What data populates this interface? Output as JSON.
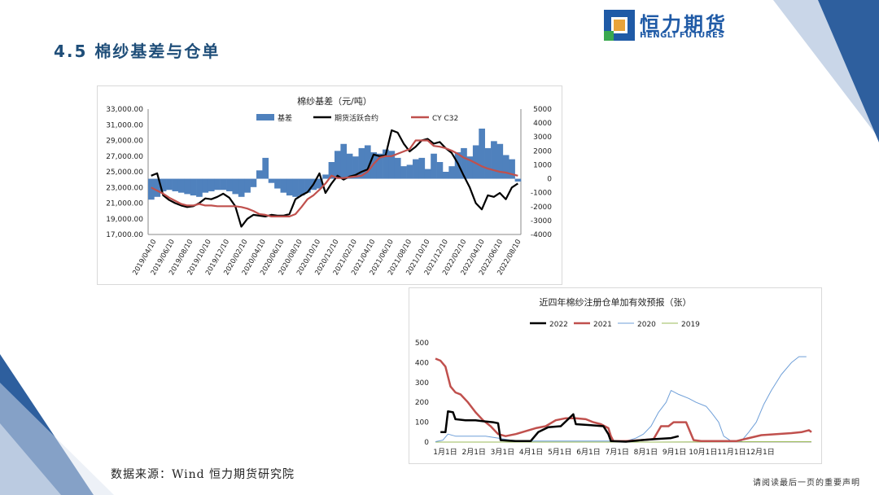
{
  "page": {
    "title": "4.5 棉纱基差与仓单",
    "source": "数据来源：Wind 恒力期货研究院",
    "disclaimer": "请阅读最后一页的重要声明"
  },
  "logo": {
    "cn": "恒力期货",
    "en": "HENGLI FUTURES",
    "colors": [
      "#1f5aa6",
      "#e8a33a",
      "#3aa84f"
    ]
  },
  "colors": {
    "accent": "#1f4e79",
    "deco_blue": "#2e5f9e",
    "deco_light": "#c9d6e8"
  },
  "chart_data": [
    {
      "type": "bar+line",
      "title": "棉纱基差（元/吨）",
      "x_ticks": [
        "2019/04/10",
        "2019/06/10",
        "2019/08/10",
        "2019/10/10",
        "2019/12/10",
        "2020/02/10",
        "2020/04/10",
        "2020/06/10",
        "2020/08/10",
        "2020/10/10",
        "2020/12/10",
        "2021/02/10",
        "2021/04/10",
        "2021/06/10",
        "2021/08/10",
        "2021/10/10",
        "2021/12/10",
        "2022/02/10",
        "2022/04/10",
        "2022/06/10",
        "2022/08/10"
      ],
      "left_axis": {
        "min": 17000,
        "max": 33000,
        "ticks": [
          "17,000.00",
          "19,000.00",
          "21,000.00",
          "23,000.00",
          "25,000.00",
          "27,000.00",
          "29,000.00",
          "31,000.00",
          "33,000.00"
        ]
      },
      "right_axis": {
        "min": -4000,
        "max": 5000,
        "ticks": [
          "-4000",
          "-3000",
          "-2000",
          "-1000",
          "0",
          "1000",
          "2000",
          "3000",
          "4000",
          "5000"
        ]
      },
      "series": [
        {
          "name": "基差",
          "axis": "right",
          "kind": "bar",
          "color": "#4f81bd",
          "values": [
            -1500,
            -1300,
            -900,
            -800,
            -900,
            -1000,
            -1100,
            -1200,
            -1300,
            -1000,
            -900,
            -800,
            -800,
            -900,
            -1100,
            -1300,
            -1000,
            -600,
            600,
            1500,
            -300,
            -700,
            -1000,
            -1200,
            -1300,
            -1200,
            -1000,
            -800,
            -700,
            300,
            1200,
            2000,
            2500,
            1800,
            1600,
            2200,
            2400,
            1900,
            1800,
            2100,
            2000,
            1500,
            900,
            1000,
            1400,
            1500,
            700,
            1800,
            1200,
            500,
            900,
            1900,
            2200,
            1600,
            2400,
            3600,
            2200,
            2700,
            2500,
            1700,
            1400,
            -200
          ]
        },
        {
          "name": "期货活跃合约",
          "axis": "left",
          "kind": "line",
          "color": "#000000",
          "values": [
            24500,
            24800,
            22000,
            21400,
            21000,
            20700,
            20500,
            20600,
            21000,
            21600,
            21500,
            21800,
            22200,
            21700,
            20600,
            18000,
            19000,
            19500,
            19400,
            19300,
            19500,
            19400,
            19400,
            19600,
            21500,
            22000,
            22400,
            23400,
            24800,
            22300,
            23500,
            24500,
            24000,
            24400,
            24600,
            25000,
            25300,
            27200,
            27000,
            27100,
            30300,
            30000,
            28600,
            27600,
            28200,
            29000,
            29200,
            28600,
            28800,
            28000,
            27400,
            26100,
            24500,
            23000,
            21000,
            20200,
            22000,
            21800,
            22300,
            21500,
            23000,
            23500
          ]
        },
        {
          "name": "CY C32",
          "axis": "left",
          "kind": "line",
          "color": "#c0504d",
          "values": [
            23000,
            22600,
            22200,
            21700,
            21300,
            20900,
            20700,
            20700,
            20900,
            20700,
            20700,
            20600,
            20600,
            20600,
            20600,
            20500,
            20300,
            20000,
            19600,
            19500,
            19300,
            19300,
            19300,
            19300,
            19600,
            20500,
            21500,
            22000,
            22700,
            23500,
            24500,
            24200,
            24200,
            24300,
            24400,
            24500,
            25000,
            26000,
            26800,
            27000,
            27000,
            27300,
            27600,
            27900,
            29000,
            29000,
            29000,
            28300,
            28200,
            28000,
            27700,
            27300,
            26800,
            26500,
            26100,
            25700,
            25400,
            25200,
            25000,
            24900,
            24700,
            24500
          ]
        }
      ]
    },
    {
      "type": "line",
      "title": "近四年棉纱注册仓单加有效预报（张）",
      "x_labels": [
        "1月1日",
        "2月1日",
        "3月1日",
        "4月1日",
        "5月1日",
        "6月1日",
        "7月1日",
        "8月1日",
        "9月1日",
        "10月1日",
        "11月1日",
        "12月1日"
      ],
      "ylim": [
        0,
        500
      ],
      "y_ticks": [
        "0",
        "100",
        "200",
        "300",
        "400",
        "500"
      ],
      "series": [
        {
          "name": "2022",
          "color": "#000000",
          "width": 2.5,
          "points": [
            [
              0.2,
              50
            ],
            [
              0.4,
              50
            ],
            [
              0.5,
              155
            ],
            [
              0.7,
              150
            ],
            [
              0.8,
              115
            ],
            [
              1.2,
              110
            ],
            [
              1.6,
              110
            ],
            [
              1.9,
              105
            ],
            [
              2.3,
              100
            ],
            [
              2.5,
              95
            ],
            [
              2.6,
              10
            ],
            [
              3.2,
              5
            ],
            [
              3.8,
              5
            ],
            [
              4.1,
              50
            ],
            [
              4.5,
              75
            ],
            [
              5.0,
              80
            ],
            [
              5.5,
              140
            ],
            [
              5.6,
              90
            ],
            [
              6.2,
              85
            ],
            [
              6.7,
              80
            ],
            [
              6.9,
              40
            ],
            [
              7.0,
              5
            ],
            [
              7.6,
              2
            ],
            [
              8.2,
              10
            ],
            [
              8.8,
              15
            ],
            [
              9.4,
              20
            ],
            [
              9.7,
              30
            ]
          ]
        },
        {
          "name": "2021",
          "color": "#c0504d",
          "width": 2.5,
          "points": [
            [
              0.0,
              420
            ],
            [
              0.2,
              410
            ],
            [
              0.4,
              380
            ],
            [
              0.6,
              280
            ],
            [
              0.8,
              250
            ],
            [
              1.0,
              240
            ],
            [
              1.3,
              200
            ],
            [
              1.6,
              150
            ],
            [
              1.9,
              110
            ],
            [
              2.2,
              80
            ],
            [
              2.5,
              40
            ],
            [
              2.8,
              30
            ],
            [
              3.2,
              40
            ],
            [
              3.6,
              55
            ],
            [
              4.0,
              70
            ],
            [
              4.4,
              80
            ],
            [
              4.8,
              110
            ],
            [
              5.2,
              120
            ],
            [
              5.6,
              120
            ],
            [
              6.0,
              115
            ],
            [
              6.3,
              100
            ],
            [
              6.6,
              90
            ],
            [
              6.9,
              70
            ],
            [
              7.0,
              30
            ],
            [
              7.1,
              5
            ],
            [
              7.6,
              5
            ],
            [
              8.2,
              10
            ],
            [
              8.7,
              15
            ],
            [
              9.0,
              80
            ],
            [
              9.3,
              80
            ],
            [
              9.5,
              100
            ],
            [
              10.0,
              100
            ],
            [
              10.3,
              10
            ],
            [
              10.6,
              5
            ],
            [
              11.2,
              5
            ],
            [
              12.0,
              5
            ],
            [
              12.5,
              20
            ],
            [
              13.0,
              35
            ],
            [
              13.6,
              40
            ],
            [
              14.2,
              45
            ],
            [
              14.6,
              50
            ],
            [
              14.9,
              60
            ],
            [
              15.0,
              50
            ]
          ]
        },
        {
          "name": "2020",
          "color": "#6f9fd8",
          "width": 1,
          "points": [
            [
              0.0,
              2
            ],
            [
              0.3,
              10
            ],
            [
              0.5,
              40
            ],
            [
              0.8,
              30
            ],
            [
              1.2,
              30
            ],
            [
              1.6,
              30
            ],
            [
              2.0,
              30
            ],
            [
              2.5,
              20
            ],
            [
              3.0,
              10
            ],
            [
              3.5,
              5
            ],
            [
              4.0,
              5
            ],
            [
              5.0,
              5
            ],
            [
              6.0,
              5
            ],
            [
              7.0,
              5
            ],
            [
              7.6,
              5
            ],
            [
              8.0,
              20
            ],
            [
              8.3,
              40
            ],
            [
              8.6,
              80
            ],
            [
              8.9,
              150
            ],
            [
              9.2,
              200
            ],
            [
              9.4,
              260
            ],
            [
              9.7,
              240
            ],
            [
              10.1,
              220
            ],
            [
              10.4,
              200
            ],
            [
              10.8,
              180
            ],
            [
              11.0,
              150
            ],
            [
              11.3,
              100
            ],
            [
              11.5,
              30
            ],
            [
              11.8,
              5
            ],
            [
              12.2,
              5
            ],
            [
              12.5,
              50
            ],
            [
              12.8,
              100
            ],
            [
              13.1,
              190
            ],
            [
              13.4,
              260
            ],
            [
              13.8,
              340
            ],
            [
              14.2,
              400
            ],
            [
              14.5,
              430
            ],
            [
              14.8,
              430
            ]
          ]
        },
        {
          "name": "2019",
          "color": "#9bbb59",
          "width": 1,
          "points": [
            [
              0.0,
              0
            ],
            [
              3.0,
              0
            ],
            [
              6.0,
              0
            ],
            [
              9.0,
              0
            ],
            [
              12.0,
              2
            ],
            [
              15.0,
              2
            ]
          ]
        }
      ]
    }
  ]
}
